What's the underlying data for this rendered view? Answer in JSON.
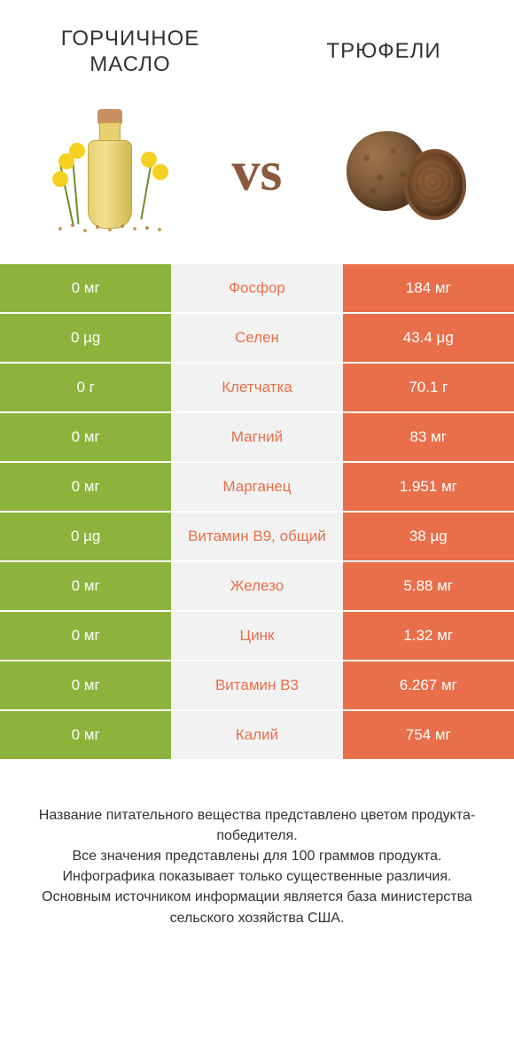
{
  "colors": {
    "left_bg": "#8cb43c",
    "mid_bg": "#f2f2f2",
    "right_bg": "#e86f4a",
    "mid_text": "#e86f4a",
    "side_text": "#ffffff",
    "vs_color": "#8b5a3c",
    "title_color": "#333333",
    "footer_color": "#333333"
  },
  "fonts": {
    "title_size": 24,
    "vs_size": 64,
    "cell_size": 17,
    "footer_size": 16
  },
  "header": {
    "left_title": "ГОРЧИЧНОЕ МАСЛО",
    "right_title": "ТРЮФЕЛИ",
    "vs_label": "vs"
  },
  "rows": [
    {
      "nutrient": "Фосфор",
      "left": "0 мг",
      "right": "184 мг"
    },
    {
      "nutrient": "Селен",
      "left": "0 µg",
      "right": "43.4 µg"
    },
    {
      "nutrient": "Клетчатка",
      "left": "0 г",
      "right": "70.1 г"
    },
    {
      "nutrient": "Магний",
      "left": "0 мг",
      "right": "83 мг"
    },
    {
      "nutrient": "Марганец",
      "left": "0 мг",
      "right": "1.951 мг"
    },
    {
      "nutrient": "Витамин B9, общий",
      "left": "0 µg",
      "right": "38 µg"
    },
    {
      "nutrient": "Железо",
      "left": "0 мг",
      "right": "5.88 мг"
    },
    {
      "nutrient": "Цинк",
      "left": "0 мг",
      "right": "1.32 мг"
    },
    {
      "nutrient": "Витамин B3",
      "left": "0 мг",
      "right": "6.267 мг"
    },
    {
      "nutrient": "Калий",
      "left": "0 мг",
      "right": "754 мг"
    }
  ],
  "footer": {
    "line1": "Название питательного вещества представлено цветом продукта-победителя.",
    "line2": "Все значения представлены для 100 граммов продукта.",
    "line3": "Инфографика показывает только существенные различия.",
    "line4": "Основным источником информации является база министерства сельского хозяйства США."
  }
}
